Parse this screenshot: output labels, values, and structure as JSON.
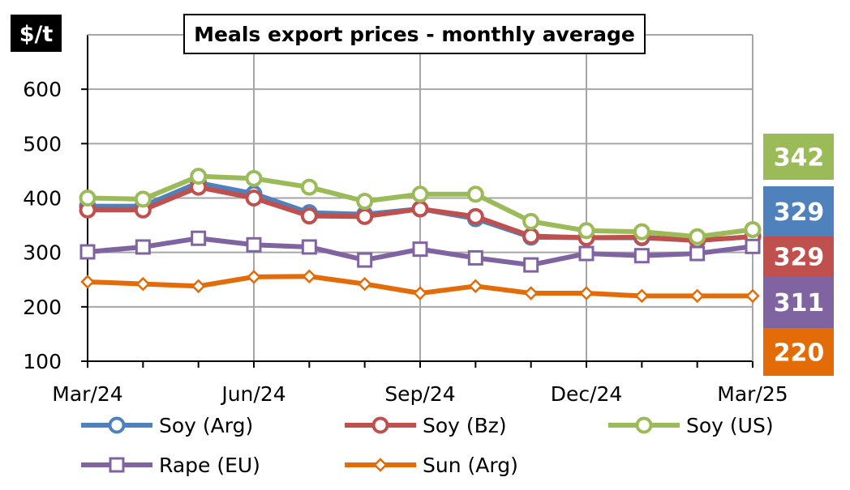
{
  "colors": {
    "soy_arg": "#4F81BD",
    "soy_bz": "#C0504D",
    "soy_us": "#9BBB59",
    "rape_eu": "#8064A2",
    "sun_arg": "#E36C09",
    "grid": "#a6a6a6"
  },
  "chart_data": {
    "type": "line",
    "title": "Meals export prices - monthly average",
    "ylabel": "$/t",
    "ylim": [
      100,
      700
    ],
    "yticks": [
      100,
      200,
      300,
      400,
      500,
      600
    ],
    "xlabels": [
      "Mar/24",
      "Jun/24",
      "Sep/24",
      "Dec/24",
      "Mar/25"
    ],
    "x": [
      "Mar/24",
      "Apr/24",
      "May/24",
      "Jun/24",
      "Jul/24",
      "Aug/24",
      "Sep/24",
      "Oct/24",
      "Nov/24",
      "Dec/24",
      "Jan/25",
      "Feb/25",
      "Mar/25"
    ],
    "grid": true,
    "legend_position": "bottom",
    "series": [
      {
        "name": "Soy (Arg)",
        "key": "soy_arg",
        "marker": "circle",
        "values": [
          385,
          385,
          428,
          408,
          373,
          370,
          380,
          362,
          328,
          327,
          327,
          322,
          329
        ]
      },
      {
        "name": "Soy (Bz)",
        "key": "soy_bz",
        "marker": "circle",
        "values": [
          378,
          378,
          420,
          400,
          367,
          366,
          380,
          366,
          330,
          327,
          328,
          322,
          329
        ]
      },
      {
        "name": "Soy (US)",
        "key": "soy_us",
        "marker": "circle",
        "values": [
          400,
          398,
          440,
          436,
          420,
          394,
          407,
          407,
          357,
          340,
          338,
          329,
          342
        ]
      },
      {
        "name": "Rape (EU)",
        "key": "rape_eu",
        "marker": "square",
        "values": [
          301,
          310,
          326,
          314,
          310,
          286,
          306,
          290,
          277,
          298,
          294,
          298,
          311
        ]
      },
      {
        "name": "Sun (Arg)",
        "key": "sun_arg",
        "marker": "diamond",
        "values": [
          246,
          242,
          238,
          255,
          256,
          242,
          225,
          238,
          225,
          225,
          220,
          220,
          220
        ]
      }
    ],
    "end_labels": [
      {
        "text": "342",
        "key": "soy_us"
      },
      {
        "text": "329",
        "key": "soy_arg"
      },
      {
        "text": "329",
        "key": "soy_bz"
      },
      {
        "text": "311",
        "key": "rape_eu"
      },
      {
        "text": "220",
        "key": "sun_arg"
      }
    ]
  }
}
